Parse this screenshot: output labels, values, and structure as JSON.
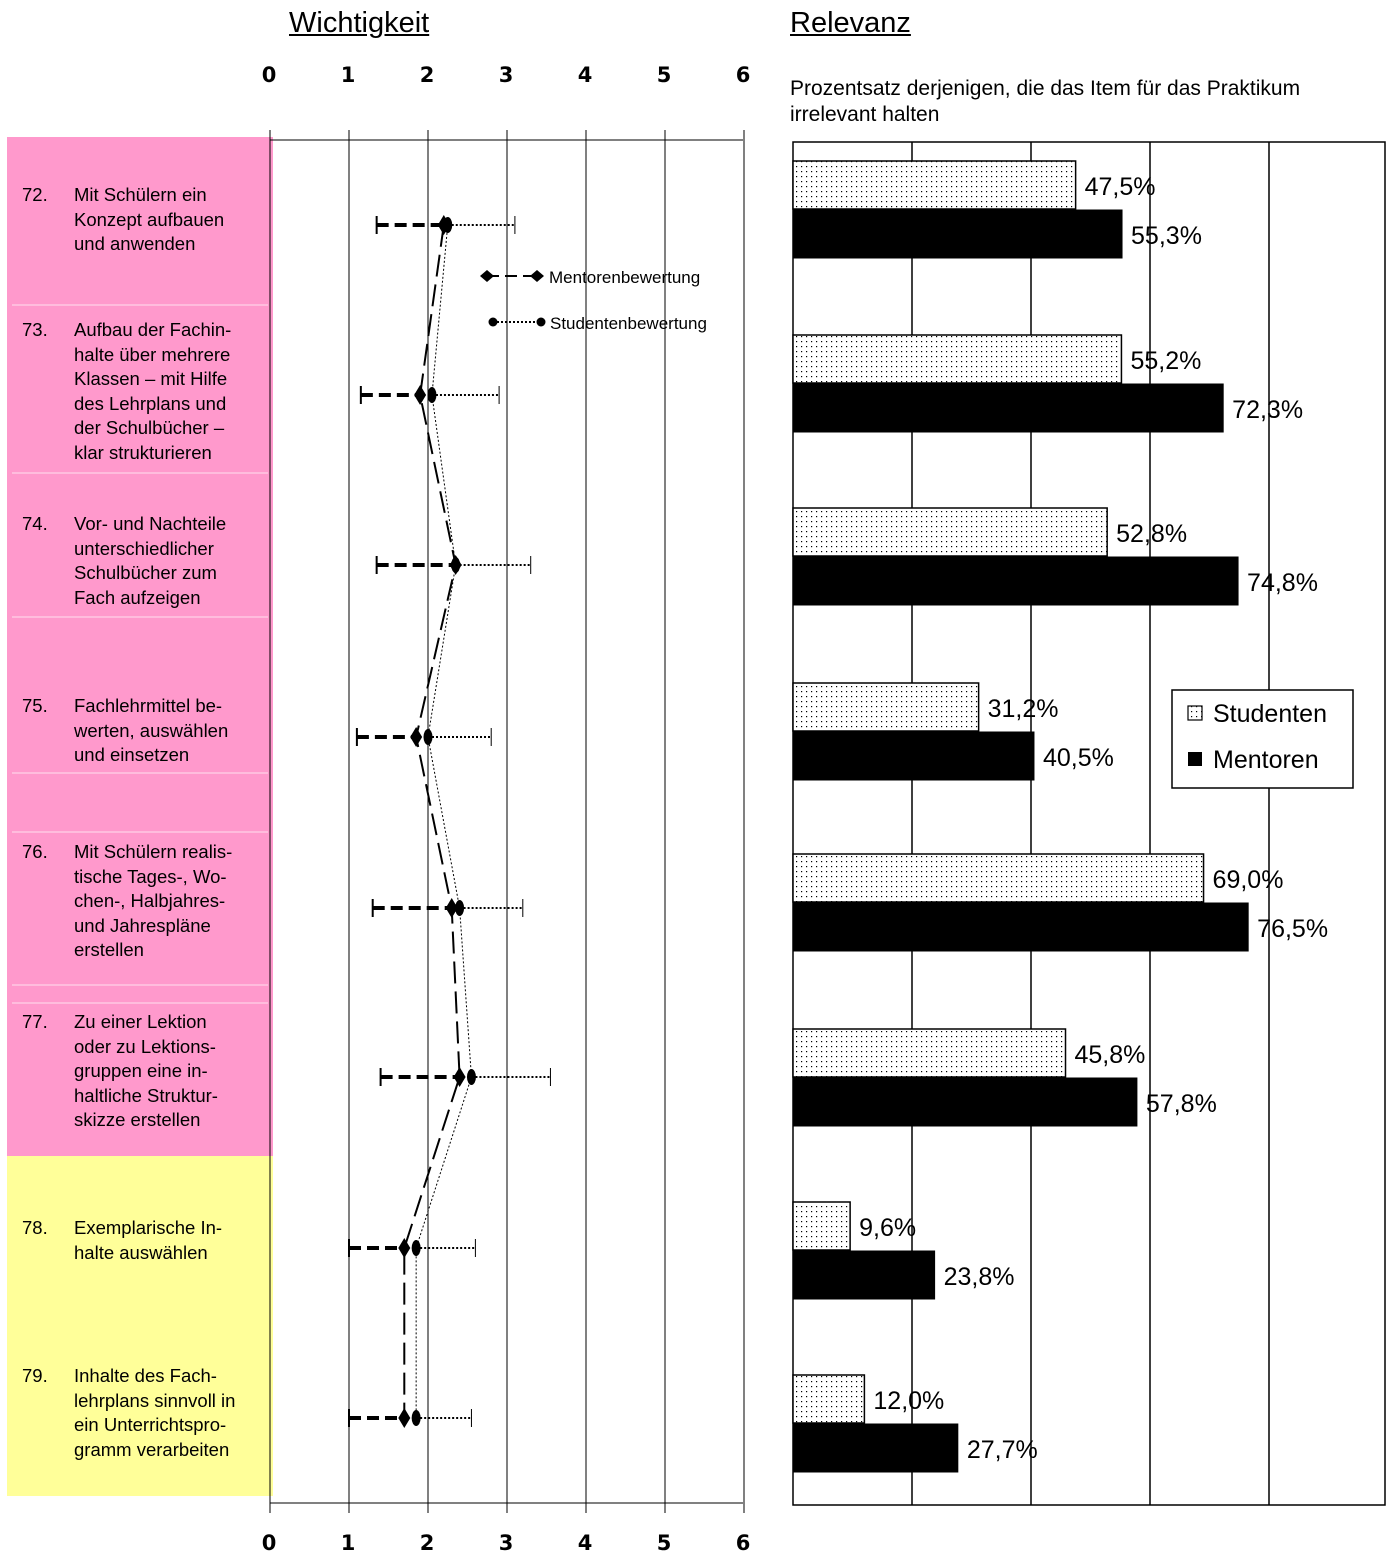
{
  "left_title": "Wichtigkeit",
  "right_title": "Relevanz",
  "right_subtitle": "Prozentsatz derjenigen, die das Item für das Praktikum irrelevant halten",
  "items": [
    {
      "num": "72.",
      "lines": [
        "Mit Schülern ein",
        "Konzept aufbauen",
        "und anwenden"
      ]
    },
    {
      "num": "73.",
      "lines": [
        "Aufbau der Fachin-",
        "halte über mehrere",
        "Klassen – mit Hilfe",
        "des Lehrplans und",
        "der Schulbücher –",
        "klar strukturieren"
      ]
    },
    {
      "num": "74.",
      "lines": [
        "Vor- und Nachteile",
        "unterschiedlicher",
        "Schulbücher zum",
        "Fach aufzeigen"
      ]
    },
    {
      "num": "75.",
      "lines": [
        "Fachlehrmittel be-",
        "werten, auswählen",
        "und einsetzen"
      ]
    },
    {
      "num": "76.",
      "lines": [
        "Mit Schülern realis-",
        "tische Tages-, Wo-",
        "chen-, Halbjahres-",
        "und Jahrespläne",
        "erstellen"
      ]
    },
    {
      "num": "77.",
      "lines": [
        "Zu einer Lektion",
        "oder zu Lektions-",
        "gruppen eine in-",
        "haltliche Struktur-",
        "skizze erstellen"
      ]
    },
    {
      "num": "78.",
      "lines": [
        "Exemplarische In-",
        "halte auswählen"
      ]
    },
    {
      "num": "79.",
      "lines": [
        "Inhalte des Fach-",
        "lehrplans sinnvoll in",
        "ein Unterrichtspro-",
        "gramm verarbeiten"
      ]
    }
  ],
  "colors": {
    "group_1": "#ff99cc",
    "group_2": "#ffff99",
    "bar_dotted": "#ffffff",
    "bar_solid": "#000000"
  },
  "chart_data": [
    {
      "type": "scatter",
      "title": "Wichtigkeit",
      "xlim": [
        0,
        6
      ],
      "x_ticks": [
        "0",
        "1",
        "2",
        "3",
        "4",
        "5",
        "6"
      ],
      "categories": [
        "72.",
        "73.",
        "74.",
        "75.",
        "76.",
        "77.",
        "78.",
        "79."
      ],
      "series": [
        {
          "name": "Mentorenbewertung",
          "style": "dashed-diamond",
          "mean": [
            2.2,
            1.9,
            2.35,
            1.85,
            2.3,
            2.4,
            1.7,
            1.7
          ],
          "low": [
            1.35,
            1.15,
            1.35,
            1.1,
            1.3,
            1.4,
            1.0,
            1.0
          ]
        },
        {
          "name": "Studentenbewertung",
          "style": "dotted-circle",
          "mean": [
            2.25,
            2.05,
            2.35,
            2.0,
            2.4,
            2.55,
            1.85,
            1.85
          ],
          "high": [
            3.1,
            2.9,
            3.3,
            2.8,
            3.2,
            3.55,
            2.6,
            2.55
          ]
        }
      ]
    },
    {
      "type": "bar",
      "title": "Relevanz",
      "xlim": [
        0,
        100
      ],
      "grid": true,
      "legend": "right",
      "categories": [
        "72.",
        "73.",
        "74.",
        "75.",
        "76.",
        "77.",
        "78.",
        "79."
      ],
      "series": [
        {
          "name": "Studenten",
          "values": [
            47.5,
            55.2,
            52.8,
            31.2,
            69.0,
            45.8,
            9.6,
            12.0
          ],
          "labels": [
            "47,5%",
            "55,2%",
            "52,8%",
            "31,2%",
            "69,0%",
            "45,8%",
            "9,6%",
            "12,0%"
          ]
        },
        {
          "name": "Mentoren",
          "values": [
            55.3,
            72.3,
            74.8,
            40.5,
            76.5,
            57.8,
            23.8,
            27.7
          ],
          "labels": [
            "55,3%",
            "72,3%",
            "74,8%",
            "40,5%",
            "76,5%",
            "57,8%",
            "23,8%",
            "27,7%"
          ]
        }
      ]
    }
  ]
}
